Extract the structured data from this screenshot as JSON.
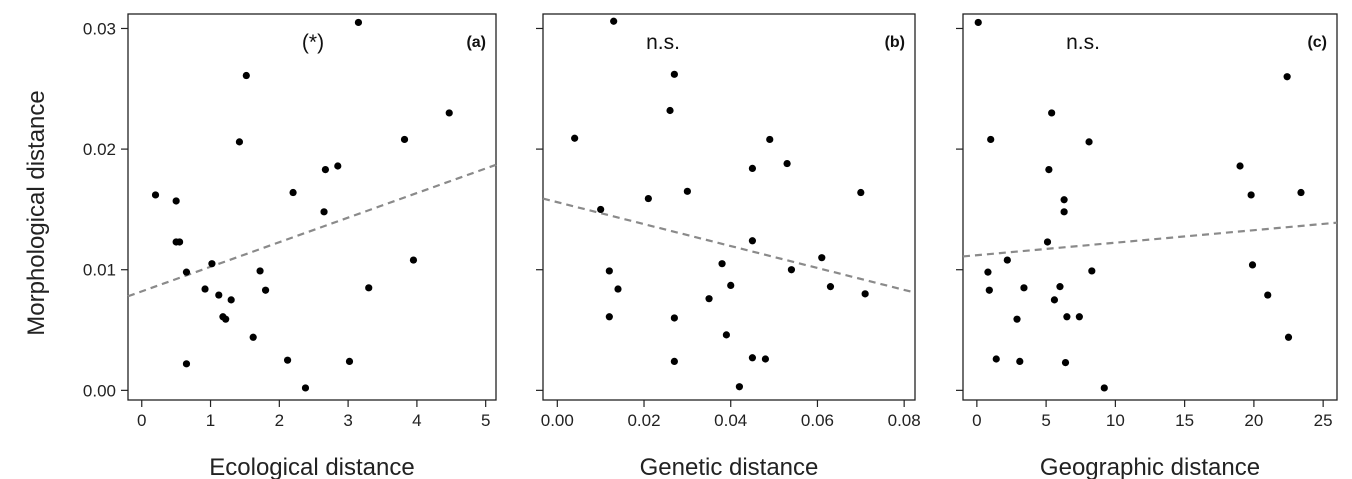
{
  "chart_data": [
    {
      "type": "scatter",
      "panel": "(a)",
      "annotation": "(*)",
      "xlabel": "Ecological distance",
      "ylabel": "Morphological distance",
      "xlim": [
        -0.2,
        5.15
      ],
      "ylim": [
        -0.0008,
        0.0312
      ],
      "xticks": [
        "0",
        "1",
        "2",
        "3",
        "4",
        "5"
      ],
      "yticks": [
        "0.00",
        "0.01",
        "0.02",
        "0.03"
      ],
      "x": [
        0.2,
        0.5,
        0.5,
        0.55,
        0.65,
        0.65,
        0.92,
        1.02,
        1.12,
        1.18,
        1.22,
        1.3,
        1.42,
        1.52,
        1.62,
        1.72,
        1.8,
        2.12,
        2.2,
        2.38,
        2.65,
        2.67,
        2.85,
        3.02,
        3.15,
        3.3,
        3.82,
        3.95,
        4.47
      ],
      "y": [
        0.0162,
        0.0123,
        0.0157,
        0.0123,
        0.0022,
        0.0098,
        0.0084,
        0.0105,
        0.0079,
        0.0061,
        0.0059,
        0.0075,
        0.0206,
        0.0261,
        0.0044,
        0.0099,
        0.0083,
        0.0025,
        0.0164,
        0.0002,
        0.0148,
        0.0183,
        0.0186,
        0.0024,
        0.0305,
        0.0085,
        0.0208,
        0.0108,
        0.023
      ],
      "trend": {
        "x": [
          -0.2,
          5.15
        ],
        "y": [
          0.0078,
          0.0187
        ]
      }
    },
    {
      "type": "scatter",
      "panel": "(b)",
      "annotation": "n.s.",
      "xlabel": "Genetic distance",
      "ylabel": "",
      "xlim": [
        -0.0033,
        0.0825
      ],
      "ylim": [
        -0.0008,
        0.0312
      ],
      "xticks": [
        "0.00",
        "0.02",
        "0.04",
        "0.06",
        "0.08"
      ],
      "yticks": [],
      "x": [
        0.004,
        0.01,
        0.012,
        0.012,
        0.013,
        0.014,
        0.021,
        0.026,
        0.027,
        0.027,
        0.027,
        0.03,
        0.035,
        0.038,
        0.039,
        0.04,
        0.042,
        0.045,
        0.045,
        0.045,
        0.048,
        0.049,
        0.053,
        0.054,
        0.061,
        0.063,
        0.07,
        0.071
      ],
      "y": [
        0.0209,
        0.015,
        0.0099,
        0.0061,
        0.0306,
        0.0084,
        0.0159,
        0.0232,
        0.0262,
        0.006,
        0.0024,
        0.0165,
        0.0076,
        0.0105,
        0.0046,
        0.0087,
        0.0003,
        0.0184,
        0.0124,
        0.0027,
        0.0026,
        0.0208,
        0.0188,
        0.01,
        0.011,
        0.0086,
        0.0164,
        0.008
      ],
      "trend": {
        "x": [
          -0.0033,
          0.0825
        ],
        "y": [
          0.0159,
          0.0081
        ]
      }
    },
    {
      "type": "scatter",
      "panel": "(c)",
      "annotation": "n.s.",
      "xlabel": "Geographic distance",
      "ylabel": "",
      "xlim": [
        -1.0,
        26.0
      ],
      "ylim": [
        -0.0008,
        0.0312
      ],
      "xticks": [
        "0",
        "5",
        "10",
        "15",
        "20",
        "25"
      ],
      "yticks": [],
      "x": [
        0.1,
        0.8,
        0.9,
        1.0,
        1.4,
        2.2,
        2.9,
        3.1,
        3.4,
        5.1,
        5.2,
        5.4,
        5.6,
        6.0,
        6.3,
        6.3,
        6.4,
        6.5,
        7.4,
        8.1,
        8.3,
        9.2,
        19.0,
        19.8,
        19.9,
        21.0,
        22.4,
        22.5,
        23.4
      ],
      "y": [
        0.0305,
        0.0098,
        0.0083,
        0.0208,
        0.0026,
        0.0108,
        0.0059,
        0.0024,
        0.0085,
        0.0123,
        0.0183,
        0.023,
        0.0075,
        0.0086,
        0.0148,
        0.0158,
        0.0023,
        0.0061,
        0.0061,
        0.0206,
        0.0099,
        0.0002,
        0.0186,
        0.0162,
        0.0104,
        0.0079,
        0.026,
        0.0044,
        0.0164
      ],
      "trend": {
        "x": [
          -1.0,
          26.0
        ],
        "y": [
          0.0111,
          0.0139
        ]
      }
    }
  ]
}
